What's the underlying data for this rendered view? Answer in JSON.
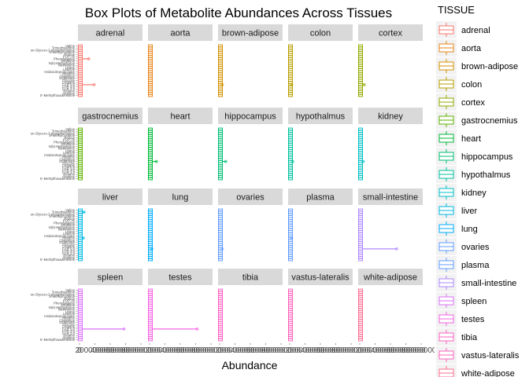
{
  "chart_data": {
    "type": "boxplot-facets",
    "title": "Box Plots of Metabolite Abundances Across Tissues",
    "xlabel": "Abundance",
    "ylabel": "",
    "legend_title": "TISSUE",
    "legend_position": "right",
    "grid": false,
    "xlim": [
      0,
      800000000
    ],
    "xticks": [
      {
        "value": 0,
        "label": "0"
      },
      {
        "value": 200000000,
        "label": "200000000"
      },
      {
        "value": 400000000,
        "label": "400000000"
      },
      {
        "value": 600000000,
        "label": "600000000"
      },
      {
        "value": 800000000,
        "label": "800000000"
      }
    ],
    "metabolites": [
      "Valine",
      "Trimethylamine",
      "sn-Glycero-3-phosphocholine",
      "S-Methylcysteine",
      "Proline",
      "POP-36",
      "Phenylalanine",
      "Ornithine",
      "N(6)-Methyllysine",
      "Methionine",
      "Lysine",
      "Leucine",
      "Imidazolepropionate",
      "Histidine",
      "Glutamine",
      "Glutamate",
      "Glucose",
      "Creatine",
      "CAR 5:0",
      "CAR 3:0",
      "CAR 2:0",
      "Betaine",
      "Arginine",
      "5'-Methylthioadenosine"
    ],
    "tissues": [
      {
        "name": "adrenal",
        "color": "#F8766D",
        "outliers": [
          {
            "row": 6,
            "value": 120000000
          },
          {
            "row": 18,
            "value": 190000000
          }
        ]
      },
      {
        "name": "aorta",
        "color": "#E7861B",
        "outliers": []
      },
      {
        "name": "brown-adipose",
        "color": "#D39200",
        "outliers": [
          {
            "row": 18,
            "value": 35000000
          }
        ]
      },
      {
        "name": "colon",
        "color": "#B79F00",
        "outliers": [
          {
            "row": 18,
            "value": 25000000
          }
        ]
      },
      {
        "name": "cortex",
        "color": "#93AA00",
        "outliers": [
          {
            "row": 18,
            "value": 60000000
          }
        ]
      },
      {
        "name": "gastrocnemius",
        "color": "#5EB300",
        "outliers": []
      },
      {
        "name": "heart",
        "color": "#00BA38",
        "outliers": [
          {
            "row": 15,
            "value": 90000000
          }
        ]
      },
      {
        "name": "hippocampus",
        "color": "#00BF74",
        "outliers": [
          {
            "row": 15,
            "value": 80000000
          }
        ]
      },
      {
        "name": "hypothalmus",
        "color": "#00C19F",
        "outliers": [
          {
            "row": 15,
            "value": 40000000
          }
        ]
      },
      {
        "name": "kidney",
        "color": "#00BFC4",
        "outliers": [
          {
            "row": 15,
            "value": 45000000
          }
        ]
      },
      {
        "name": "liver",
        "color": "#00B9E3",
        "outliers": [
          {
            "row": 1,
            "value": 60000000
          },
          {
            "row": 13,
            "value": 50000000
          }
        ]
      },
      {
        "name": "lung",
        "color": "#00ADFA",
        "outliers": [
          {
            "row": 18,
            "value": 30000000
          }
        ]
      },
      {
        "name": "ovaries",
        "color": "#619CFF",
        "outliers": [
          {
            "row": 18,
            "value": 35000000
          }
        ]
      },
      {
        "name": "plasma",
        "color": "#619CFF",
        "outliers": [
          {
            "row": 13,
            "value": 25000000
          }
        ]
      },
      {
        "name": "small-intestine",
        "color": "#AE87FF",
        "outliers": [
          {
            "row": 18,
            "value": 480000000
          }
        ]
      },
      {
        "name": "spleen",
        "color": "#DB72FB",
        "outliers": [
          {
            "row": 18,
            "value": 580000000
          }
        ]
      },
      {
        "name": "testes",
        "color": "#F564E3",
        "outliers": [
          {
            "row": 18,
            "value": 620000000
          }
        ]
      },
      {
        "name": "tibia",
        "color": "#FF61C3",
        "outliers": []
      },
      {
        "name": "vastus-lateralis",
        "color": "#FF62BC",
        "outliers": []
      },
      {
        "name": "white-adipose",
        "color": "#FF6C91",
        "outliers": []
      }
    ]
  }
}
